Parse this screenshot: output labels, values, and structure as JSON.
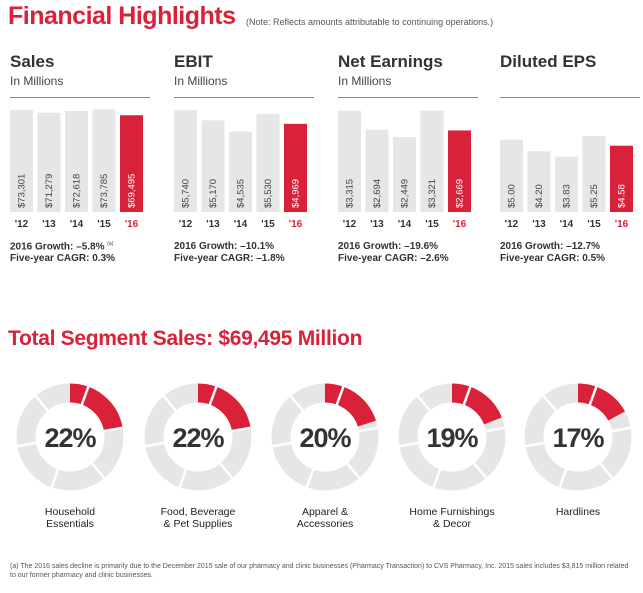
{
  "header": {
    "title": "Financial Highlights",
    "note": "(Note: Reflects amounts attributable to continuing operations.)"
  },
  "colors": {
    "accent": "#d9213a",
    "bar_gray": "#e6e6e6",
    "track_gray": "#e6e6e6"
  },
  "chart_data": [
    {
      "type": "bar",
      "title": "Sales",
      "subtitle": "In Millions",
      "categories": [
        "'12",
        "'13",
        "'14",
        "'15",
        "'16"
      ],
      "values": [
        73301,
        71279,
        72618,
        73785,
        69495
      ],
      "value_labels": [
        "$73,301",
        "$71,279",
        "$72,618",
        "$73,785",
        "$69,495"
      ],
      "highlight_index": 4,
      "ylim": [
        0,
        79000
      ],
      "growth": "2016 Growth: –5.8%",
      "growth_footnote": "(a)",
      "cagr": "Five-year CAGR: 0.3%"
    },
    {
      "type": "bar",
      "title": "EBIT",
      "subtitle": "In Millions",
      "categories": [
        "'12",
        "'13",
        "'14",
        "'15",
        "'16"
      ],
      "values": [
        5740,
        5170,
        4535,
        5530,
        4969
      ],
      "value_labels": [
        "$5,740",
        "$5,170",
        "$4,535",
        "$5,530",
        "$4,969"
      ],
      "highlight_index": 4,
      "ylim": [
        0,
        6200
      ],
      "growth": "2016 Growth: –10.1%",
      "cagr": "Five-year CAGR: –1.8%"
    },
    {
      "type": "bar",
      "title": "Net Earnings",
      "subtitle": "In Millions",
      "categories": [
        "'12",
        "'13",
        "'14",
        "'15",
        "'16"
      ],
      "values": [
        3315,
        2694,
        2449,
        3321,
        2669
      ],
      "value_labels": [
        "$3,315",
        "$2,694",
        "$2,449",
        "$3,321",
        "$2,669"
      ],
      "highlight_index": 4,
      "ylim": [
        0,
        3600
      ],
      "growth": "2016 Growth: –19.6%",
      "cagr": "Five-year CAGR: –2.6%"
    },
    {
      "type": "bar",
      "title": "Diluted EPS",
      "subtitle": "",
      "categories": [
        "'12",
        "'13",
        "'14",
        "'15",
        "'16"
      ],
      "values": [
        5.0,
        4.2,
        3.83,
        5.25,
        4.58
      ],
      "value_labels": [
        "$5.00",
        "$4.20",
        "$3.83",
        "$5.25",
        "$4.58"
      ],
      "highlight_index": 4,
      "ylim": [
        0,
        7.6
      ],
      "growth": "2016 Growth: –12.7%",
      "cagr": "Five-year CAGR: 0.5%"
    },
    {
      "type": "pie",
      "title": "Total Segment Sales: $69,495 Million",
      "segments": [
        {
          "label_lines": [
            "Household",
            "Essentials"
          ],
          "percent": 22,
          "percent_label": "22%"
        },
        {
          "label_lines": [
            "Food, Beverage",
            "& Pet Supplies"
          ],
          "percent": 22,
          "percent_label": "22%"
        },
        {
          "label_lines": [
            "Apparel &",
            "Accessories"
          ],
          "percent": 20,
          "percent_label": "20%"
        },
        {
          "label_lines": [
            "Home Furnishings",
            "& Decor"
          ],
          "percent": 19,
          "percent_label": "19%"
        },
        {
          "label_lines": [
            "Hardlines"
          ],
          "percent": 17,
          "percent_label": "17%"
        }
      ]
    }
  ],
  "footnote": "(a) The 2016 sales decline is primarily due to the December 2015 sale of our pharmacy and clinic businesses (Pharmacy Transaction) to CVS Pharmacy, Inc. 2015 sales includes $3,815 million related to our former pharmacy and clinic businesses."
}
